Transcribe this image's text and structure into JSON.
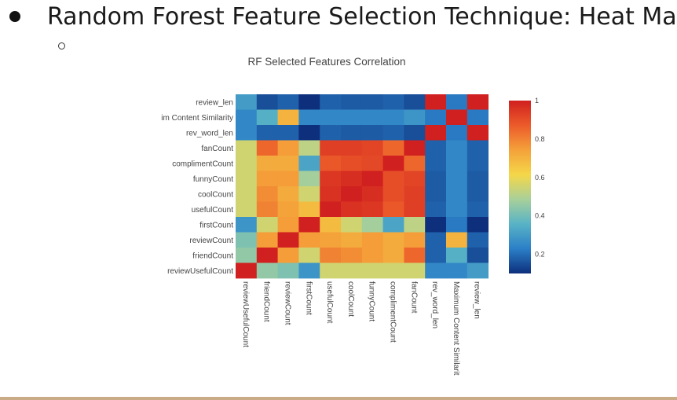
{
  "slide": {
    "bullet_text": "Random Forest Feature Selection Technique: Heat Map"
  },
  "chart_data": {
    "type": "heatmap",
    "title": "RF Selected Features Correlation",
    "colorscale": "Jet",
    "colorscale_colors": [
      "#0d2f7c",
      "#2b7fc7",
      "#58b3c6",
      "#a8d09a",
      "#f5d749",
      "#f4a13a",
      "#ec5b2a",
      "#d0201f"
    ],
    "zlim": [
      0.1,
      1
    ],
    "colorbar_ticks": [
      {
        "value": 1,
        "label": "1"
      },
      {
        "value": 0.8,
        "label": "0.8"
      },
      {
        "value": 0.6,
        "label": "0.6"
      },
      {
        "value": 0.4,
        "label": "0.4"
      },
      {
        "value": 0.2,
        "label": "0.2"
      }
    ],
    "x_labels": [
      "reviewUsefulCount",
      "friendCount",
      "reviewCount",
      "firstCount",
      "usefulCount",
      "coolCount",
      "funnyCount",
      "complimentCount",
      "fanCount",
      "rev_word_len",
      "Maximum Content Similarit",
      "review_len"
    ],
    "y_labels": [
      "review_len",
      "im Content Similarity",
      "rev_word_len",
      "fanCount",
      "complimentCount",
      "funnyCount",
      "coolCount",
      "usefulCount",
      "firstCount",
      "reviewCount",
      "friendCount",
      "reviewUsefulCount"
    ],
    "z": [
      [
        0.3,
        0.15,
        0.18,
        0.1,
        0.18,
        0.17,
        0.17,
        0.18,
        0.15,
        1.0,
        0.22,
        1.0
      ],
      [
        0.25,
        0.35,
        0.7,
        0.25,
        0.25,
        0.25,
        0.25,
        0.25,
        0.28,
        0.22,
        1.0,
        0.22
      ],
      [
        0.25,
        0.18,
        0.18,
        0.1,
        0.18,
        0.17,
        0.17,
        0.18,
        0.15,
        1.0,
        0.22,
        1.0
      ],
      [
        0.55,
        0.85,
        0.75,
        0.52,
        0.93,
        0.93,
        0.92,
        0.85,
        1.0,
        0.18,
        0.25,
        0.18
      ],
      [
        0.55,
        0.72,
        0.72,
        0.32,
        0.88,
        0.9,
        0.91,
        1.0,
        0.85,
        0.18,
        0.25,
        0.18
      ],
      [
        0.55,
        0.75,
        0.75,
        0.48,
        0.95,
        0.97,
        1.0,
        0.9,
        0.92,
        0.17,
        0.25,
        0.17
      ],
      [
        0.55,
        0.78,
        0.72,
        0.55,
        0.96,
        1.0,
        0.97,
        0.9,
        0.93,
        0.17,
        0.25,
        0.17
      ],
      [
        0.55,
        0.8,
        0.74,
        0.68,
        1.0,
        0.96,
        0.95,
        0.88,
        0.93,
        0.18,
        0.25,
        0.18
      ],
      [
        0.28,
        0.55,
        0.75,
        1.0,
        0.68,
        0.55,
        0.48,
        0.32,
        0.52,
        0.1,
        0.22,
        0.1
      ],
      [
        0.42,
        0.75,
        1.0,
        0.75,
        0.74,
        0.72,
        0.75,
        0.72,
        0.75,
        0.18,
        0.7,
        0.18
      ],
      [
        0.45,
        1.0,
        0.75,
        0.55,
        0.8,
        0.78,
        0.75,
        0.72,
        0.85,
        0.18,
        0.35,
        0.15
      ],
      [
        1.0,
        0.45,
        0.42,
        0.28,
        0.55,
        0.55,
        0.55,
        0.55,
        0.55,
        0.25,
        0.25,
        0.3
      ]
    ]
  }
}
